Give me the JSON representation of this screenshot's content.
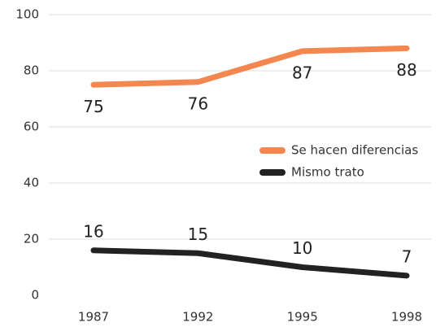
{
  "chart_data": {
    "type": "line",
    "categories": [
      "1987",
      "1992",
      "1995",
      "1998"
    ],
    "series": [
      {
        "name": "Se hacen diferencias",
        "color": "#f4874f",
        "values": [
          75,
          76,
          87,
          88
        ]
      },
      {
        "name": "Mismo trato",
        "color": "#222222",
        "values": [
          16,
          15,
          10,
          7
        ]
      }
    ],
    "ylim": [
      0,
      100
    ],
    "yticks": [
      0,
      20,
      40,
      60,
      80,
      100
    ],
    "grid": true,
    "legend": "right"
  }
}
